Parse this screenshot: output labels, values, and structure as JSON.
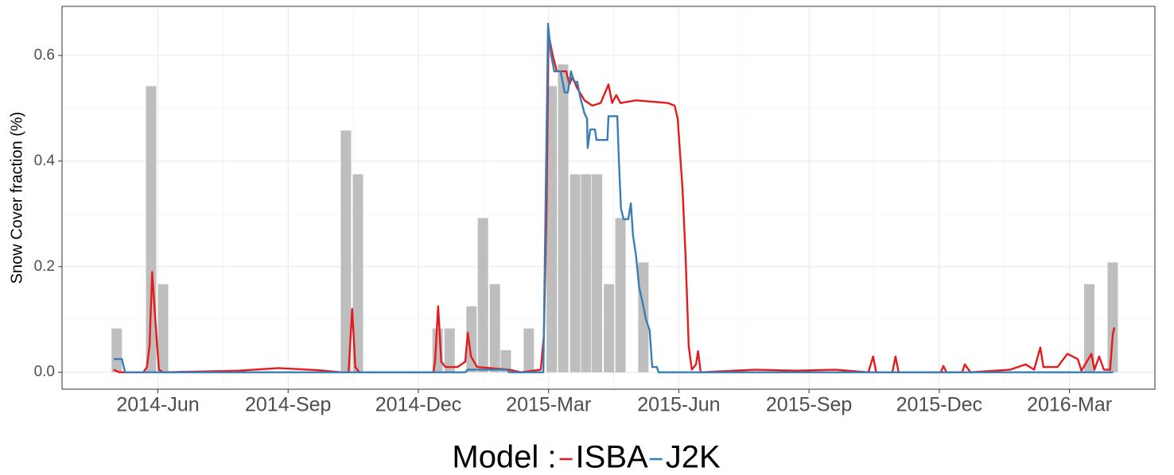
{
  "chart_data": {
    "type": "combo",
    "ylabel": "Snow Cover fraction (%)",
    "xlim": [
      2014.233,
      2016.331
    ],
    "ylim": [
      -0.032,
      0.693
    ],
    "xticks": [
      {
        "value": 2014.417,
        "label": "2014-Jun"
      },
      {
        "value": 2014.667,
        "label": "2014-Sep"
      },
      {
        "value": 2014.917,
        "label": "2014-Dec"
      },
      {
        "value": 2015.167,
        "label": "2015-Mar"
      },
      {
        "value": 2015.417,
        "label": "2015-Jun"
      },
      {
        "value": 2015.667,
        "label": "2015-Sep"
      },
      {
        "value": 2015.917,
        "label": "2015-Dec"
      },
      {
        "value": 2016.167,
        "label": "2016-Mar"
      }
    ],
    "yticks": [
      {
        "value": 0,
        "label": "0.0"
      },
      0.2,
      0.4,
      0.6
    ],
    "grid": true,
    "legend_title": "Model :",
    "legend_position": "bottom",
    "series": [
      {
        "type": "bar",
        "color": "#bebebe",
        "x": [
          2014.338,
          2014.404,
          2014.427,
          2014.778,
          2014.801,
          2014.954,
          2014.977,
          2015.019,
          2015.041,
          2015.064,
          2015.085,
          2015.129,
          2015.173,
          2015.195,
          2015.218,
          2015.239,
          2015.26,
          2015.283,
          2015.305,
          2015.349,
          2016.205,
          2016.25
        ],
        "values": [
          0.083,
          0.542,
          0.167,
          0.458,
          0.375,
          0.083,
          0.083,
          0.125,
          0.292,
          0.167,
          0.042,
          0.083,
          0.542,
          0.583,
          0.375,
          0.375,
          0.375,
          0.167,
          0.292,
          0.208,
          0.167,
          0.208
        ]
      },
      {
        "type": "line",
        "name": "ISBA",
        "color": "#e41a1c",
        "x": [
          2014.332,
          2014.343,
          2014.389,
          2014.396,
          2014.401,
          2014.406,
          2014.412,
          2014.419,
          2014.427,
          2014.572,
          2014.648,
          2014.725,
          2014.77,
          2014.783,
          2014.79,
          2014.796,
          2014.804,
          2014.946,
          2014.949,
          2014.955,
          2014.961,
          2014.969,
          2014.992,
          2015.007,
          2015.012,
          2015.018,
          2015.03,
          2015.091,
          2015.114,
          2015.152,
          2015.158,
          2015.163,
          2015.167,
          2015.175,
          2015.183,
          2015.201,
          2015.207,
          2015.213,
          2015.221,
          2015.236,
          2015.251,
          2015.267,
          2015.282,
          2015.289,
          2015.297,
          2015.305,
          2015.335,
          2015.396,
          2015.409,
          2015.415,
          2015.419,
          2015.424,
          2015.43,
          2015.436,
          2015.442,
          2015.45,
          2015.454,
          2015.459,
          2015.564,
          2015.641,
          2015.717,
          2015.781,
          2015.79,
          2015.796,
          2015.827,
          2015.833,
          2015.839,
          2015.92,
          2015.925,
          2015.931,
          2015.961,
          2015.966,
          2015.977,
          2016.053,
          2016.083,
          2016.099,
          2016.111,
          2016.117,
          2016.144,
          2016.163,
          2016.183,
          2016.19,
          2016.209,
          2016.215,
          2016.224,
          2016.233,
          2016.245,
          2016.25,
          2016.253
        ],
        "values": [
          0.005,
          0,
          0,
          0.01,
          0.05,
          0.19,
          0.1,
          0.005,
          0,
          0.003,
          0.008,
          0.004,
          0,
          0,
          0.12,
          0.01,
          0,
          0,
          0.02,
          0.125,
          0.02,
          0.01,
          0.01,
          0.02,
          0.075,
          0.03,
          0.01,
          0.005,
          0,
          0.005,
          0.07,
          0.3,
          0.64,
          0.6,
          0.57,
          0.57,
          0.545,
          0.56,
          0.54,
          0.515,
          0.505,
          0.51,
          0.545,
          0.51,
          0.525,
          0.51,
          0.515,
          0.51,
          0.505,
          0.48,
          0.42,
          0.35,
          0.22,
          0.05,
          0.005,
          0.015,
          0.04,
          0,
          0.005,
          0.003,
          0.005,
          0,
          0.03,
          0,
          0,
          0.03,
          0,
          0,
          0.012,
          0,
          0,
          0.015,
          0,
          0.005,
          0.015,
          0.005,
          0.047,
          0.01,
          0.01,
          0.035,
          0.025,
          0.003,
          0.035,
          0.005,
          0.03,
          0.005,
          0.005,
          0.07,
          0.085
        ]
      },
      {
        "type": "line",
        "name": "J2K",
        "color": "#377eb8",
        "x": [
          2014.332,
          2014.348,
          2014.354,
          2015.007,
          2015.012,
          2015.088,
          2015.091,
          2015.157,
          2015.161,
          2015.166,
          2015.172,
          2015.178,
          2015.19,
          2015.198,
          2015.204,
          2015.21,
          2015.216,
          2015.222,
          2015.228,
          2015.236,
          2015.241,
          2015.242,
          2015.247,
          2015.256,
          2015.259,
          2015.28,
          2015.282,
          2015.299,
          2015.302,
          2015.306,
          2015.311,
          2015.32,
          2015.325,
          2015.329,
          2015.335,
          2015.341,
          2015.348,
          2015.354,
          2015.361,
          2015.366,
          2015.375,
          2015.378,
          2016.251
        ],
        "values": [
          0.025,
          0.025,
          0,
          0,
          0.005,
          0.005,
          0,
          0,
          0.3,
          0.66,
          0.6,
          0.57,
          0.57,
          0.53,
          0.53,
          0.57,
          0.55,
          0.55,
          0.52,
          0.49,
          0.48,
          0.425,
          0.46,
          0.46,
          0.44,
          0.44,
          0.485,
          0.485,
          0.4,
          0.31,
          0.29,
          0.29,
          0.32,
          0.26,
          0.22,
          0.16,
          0.13,
          0.1,
          0.08,
          0.01,
          0.01,
          0,
          0
        ]
      }
    ]
  }
}
